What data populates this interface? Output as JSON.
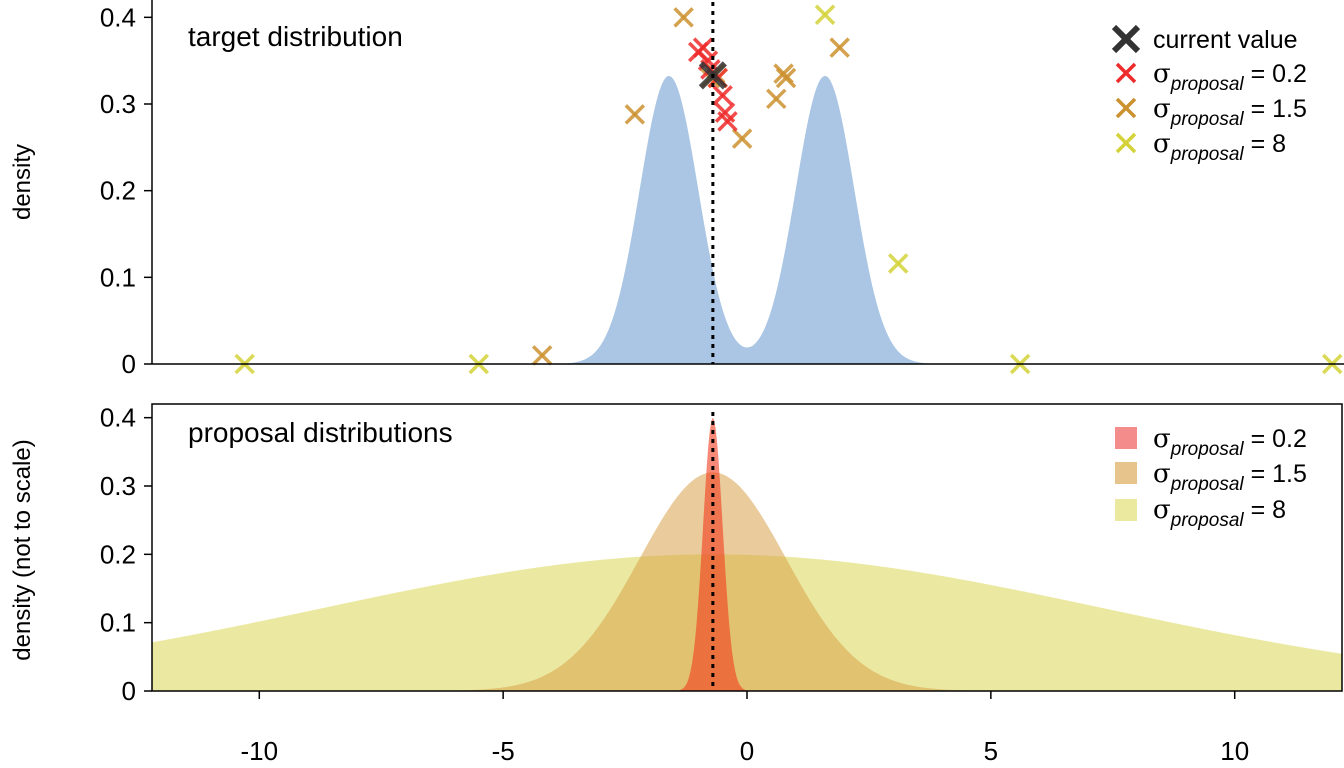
{
  "chart_data": [
    {
      "type": "area",
      "title": "target distribution",
      "ylabel": "density",
      "xlim": [
        -12.2,
        12.2
      ],
      "ylim": [
        0,
        0.42
      ],
      "y_ticks": [
        "0",
        "0.1",
        "0.2",
        "0.3",
        "0.4"
      ],
      "y_tick_values": [
        0,
        0.1,
        0.2,
        0.3,
        0.4
      ],
      "current_value": -0.7,
      "fill_color": "#aac6e4",
      "mixture": [
        {
          "mean": -1.6,
          "sd": 0.6,
          "weight": 0.5
        },
        {
          "mean": 1.6,
          "sd": 0.6,
          "weight": 0.5
        }
      ],
      "legend": [
        {
          "symbol": "×",
          "label": "current value",
          "color": "#333333",
          "kind": "bold"
        },
        {
          "symbol": "σ",
          "sub": "proposal",
          "suffix": " = 0.2",
          "color": "#ee2c2c",
          "kind": "proposal"
        },
        {
          "symbol": "σ",
          "sub": "proposal",
          "suffix": " = 1.5",
          "color": "#cd9230",
          "kind": "proposal"
        },
        {
          "symbol": "σ",
          "sub": "proposal",
          "suffix": " = 8",
          "color": "#d4d238",
          "kind": "proposal"
        }
      ],
      "current_point": {
        "x": -0.7,
        "y": 0.333
      },
      "series": [
        {
          "name": "σproposal = 0.2",
          "color": "#ee2c2c",
          "points": [
            [
              -1.0,
              0.36
            ],
            [
              -0.9,
              0.365
            ],
            [
              -0.8,
              0.35
            ],
            [
              -0.75,
              0.34
            ],
            [
              -0.6,
              0.33
            ],
            [
              -0.5,
              0.31
            ],
            [
              -0.45,
              0.29
            ],
            [
              -0.4,
              0.28
            ]
          ]
        },
        {
          "name": "σproposal = 1.5",
          "color": "#cd9230",
          "points": [
            [
              -4.2,
              0.01
            ],
            [
              -2.3,
              0.288
            ],
            [
              -1.3,
              0.4
            ],
            [
              -0.75,
              0.33
            ],
            [
              -0.65,
              0.335
            ],
            [
              -0.1,
              0.26
            ],
            [
              0.6,
              0.306
            ],
            [
              0.75,
              0.335
            ],
            [
              0.8,
              0.33
            ],
            [
              1.9,
              0.365
            ]
          ]
        },
        {
          "name": "σproposal = 8",
          "color": "#d4d238",
          "points": [
            [
              -10.3,
              0.0
            ],
            [
              -5.5,
              0.0
            ],
            [
              -0.6,
              0.33
            ],
            [
              1.6,
              0.403
            ],
            [
              3.1,
              0.116
            ],
            [
              5.6,
              0.0
            ],
            [
              12.0,
              0.0
            ]
          ]
        }
      ]
    },
    {
      "type": "area",
      "title": "proposal distributions",
      "ylabel": "density (not to scale)",
      "xlim": [
        -12.2,
        12.2
      ],
      "ylim": [
        0,
        0.42
      ],
      "x_ticks": [
        "-10",
        "-5",
        "0",
        "5",
        "10"
      ],
      "x_tick_values": [
        -10,
        -5,
        0,
        5,
        10
      ],
      "y_ticks": [
        "0",
        "0.1",
        "0.2",
        "0.3",
        "0.4"
      ],
      "y_tick_values": [
        0,
        0.1,
        0.2,
        0.3,
        0.4
      ],
      "current_value": -0.7,
      "legend": [
        {
          "symbol": "σ",
          "sub": "proposal",
          "suffix": " = 0.2",
          "color": "#f48c8c"
        },
        {
          "symbol": "σ",
          "sub": "proposal",
          "suffix": " = 1.5",
          "color": "#e6c48c"
        },
        {
          "symbol": "σ",
          "sub": "proposal",
          "suffix": " = 8",
          "color": "#ebe8a0"
        }
      ],
      "series": [
        {
          "name": "σproposal = 8",
          "sd": 8,
          "peak": 0.2,
          "color": "#e6e38a",
          "opacity": 0.8
        },
        {
          "name": "σproposal = 1.5",
          "sd": 1.5,
          "peak": 0.32,
          "color": "#d9a24a",
          "opacity": 0.55
        },
        {
          "name": "σproposal = 0.2",
          "sd": 0.2,
          "peak": 0.4,
          "color": "#f23a1e",
          "opacity": 0.6
        }
      ]
    }
  ]
}
